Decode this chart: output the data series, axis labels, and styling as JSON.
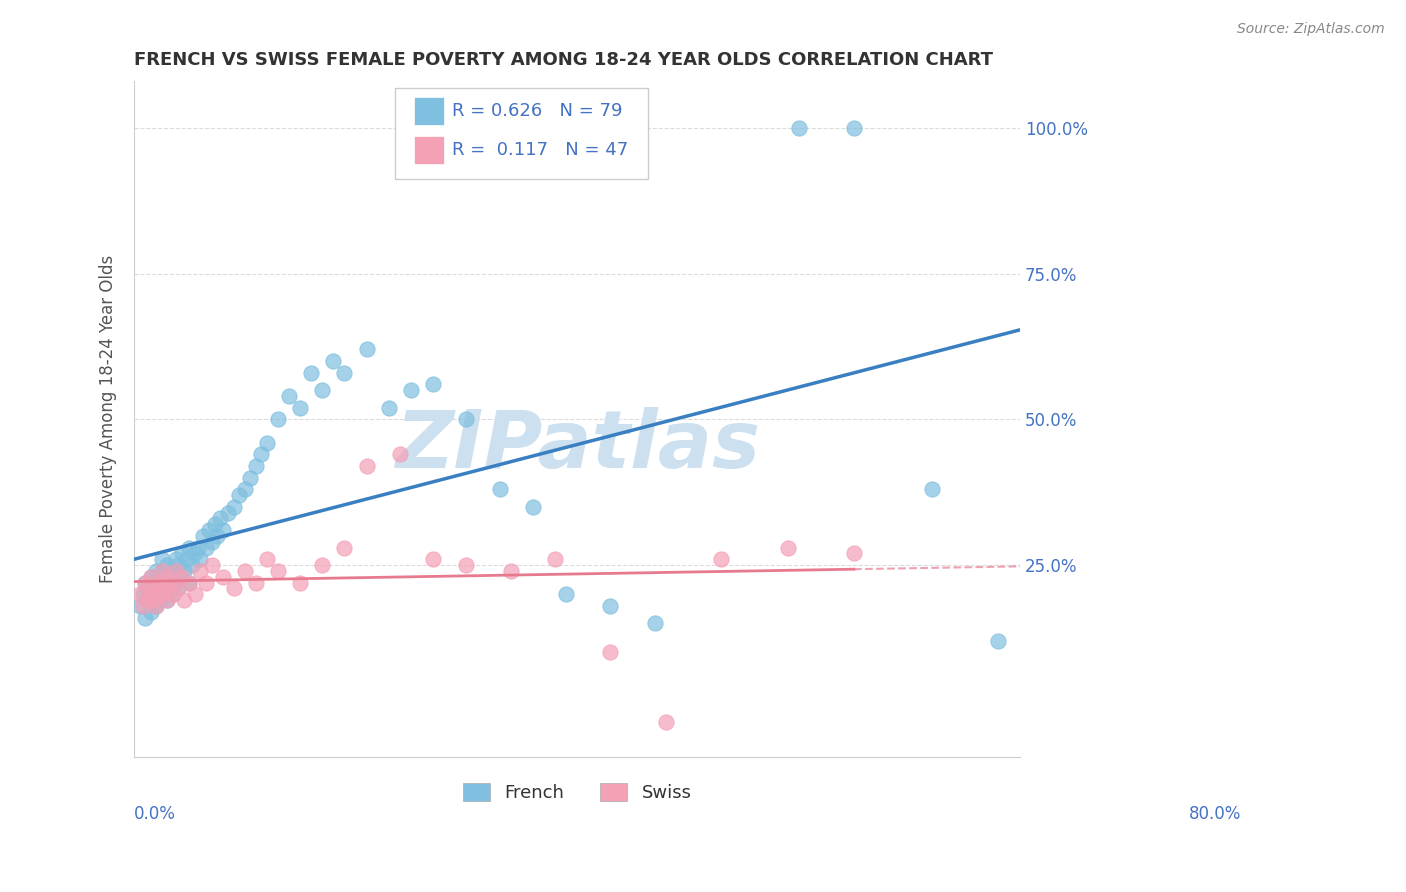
{
  "title": "FRENCH VS SWISS FEMALE POVERTY AMONG 18-24 YEAR OLDS CORRELATION CHART",
  "source": "Source: ZipAtlas.com",
  "xlabel_start": "0.0%",
  "xlabel_end": "80.0%",
  "xmin": 0.0,
  "xmax": 0.8,
  "ymin": -0.08,
  "ymax": 1.08,
  "yticks": [
    0.25,
    0.5,
    0.75,
    1.0
  ],
  "ytick_labels": [
    "25.0%",
    "50.0%",
    "75.0%",
    "100.0%"
  ],
  "french_R": 0.626,
  "french_N": 79,
  "swiss_R": 0.117,
  "swiss_N": 47,
  "french_color": "#7fbfdf",
  "swiss_color": "#f4a0b5",
  "french_line_color": "#3a7fc1",
  "swiss_line_color": "#e87a90",
  "watermark": "ZIPatlas",
  "watermark_color": "#cce0f0",
  "ylabel": "Female Poverty Among 18-24 Year Olds",
  "legend_label_french": "French",
  "legend_label_swiss": "Swiss",
  "french_scatter_x": [
    0.005,
    0.008,
    0.01,
    0.01,
    0.012,
    0.013,
    0.015,
    0.015,
    0.015,
    0.018,
    0.02,
    0.02,
    0.02,
    0.022,
    0.022,
    0.023,
    0.025,
    0.025,
    0.025,
    0.027,
    0.028,
    0.03,
    0.03,
    0.03,
    0.032,
    0.033,
    0.035,
    0.035,
    0.037,
    0.038,
    0.04,
    0.04,
    0.042,
    0.043,
    0.045,
    0.048,
    0.05,
    0.05,
    0.052,
    0.055,
    0.058,
    0.06,
    0.062,
    0.065,
    0.068,
    0.07,
    0.073,
    0.075,
    0.078,
    0.08,
    0.085,
    0.09,
    0.095,
    0.1,
    0.105,
    0.11,
    0.115,
    0.12,
    0.13,
    0.14,
    0.15,
    0.16,
    0.17,
    0.18,
    0.19,
    0.21,
    0.23,
    0.25,
    0.27,
    0.3,
    0.33,
    0.36,
    0.39,
    0.43,
    0.47,
    0.6,
    0.65,
    0.72,
    0.78
  ],
  "french_scatter_y": [
    0.18,
    0.2,
    0.16,
    0.22,
    0.19,
    0.21,
    0.17,
    0.2,
    0.23,
    0.19,
    0.18,
    0.21,
    0.24,
    0.2,
    0.22,
    0.19,
    0.21,
    0.24,
    0.26,
    0.22,
    0.2,
    0.19,
    0.22,
    0.25,
    0.21,
    0.23,
    0.2,
    0.24,
    0.22,
    0.26,
    0.21,
    0.25,
    0.23,
    0.27,
    0.24,
    0.26,
    0.22,
    0.28,
    0.25,
    0.27,
    0.28,
    0.26,
    0.3,
    0.28,
    0.31,
    0.29,
    0.32,
    0.3,
    0.33,
    0.31,
    0.34,
    0.35,
    0.37,
    0.38,
    0.4,
    0.42,
    0.44,
    0.46,
    0.5,
    0.54,
    0.52,
    0.58,
    0.55,
    0.6,
    0.58,
    0.62,
    0.52,
    0.55,
    0.56,
    0.5,
    0.38,
    0.35,
    0.2,
    0.18,
    0.15,
    1.0,
    1.0,
    0.38,
    0.12
  ],
  "swiss_scatter_x": [
    0.005,
    0.008,
    0.01,
    0.012,
    0.013,
    0.015,
    0.015,
    0.018,
    0.02,
    0.02,
    0.022,
    0.025,
    0.025,
    0.027,
    0.03,
    0.03,
    0.033,
    0.035,
    0.038,
    0.04,
    0.043,
    0.045,
    0.05,
    0.055,
    0.06,
    0.065,
    0.07,
    0.08,
    0.09,
    0.1,
    0.11,
    0.12,
    0.13,
    0.15,
    0.17,
    0.19,
    0.21,
    0.24,
    0.27,
    0.3,
    0.34,
    0.38,
    0.43,
    0.48,
    0.53,
    0.59,
    0.65
  ],
  "swiss_scatter_y": [
    0.2,
    0.18,
    0.22,
    0.19,
    0.21,
    0.2,
    0.23,
    0.19,
    0.21,
    0.18,
    0.22,
    0.2,
    0.24,
    0.21,
    0.19,
    0.23,
    0.22,
    0.2,
    0.24,
    0.21,
    0.23,
    0.19,
    0.22,
    0.2,
    0.24,
    0.22,
    0.25,
    0.23,
    0.21,
    0.24,
    0.22,
    0.26,
    0.24,
    0.22,
    0.25,
    0.28,
    0.42,
    0.44,
    0.26,
    0.25,
    0.24,
    0.26,
    0.1,
    -0.02,
    0.26,
    0.28,
    0.27
  ]
}
